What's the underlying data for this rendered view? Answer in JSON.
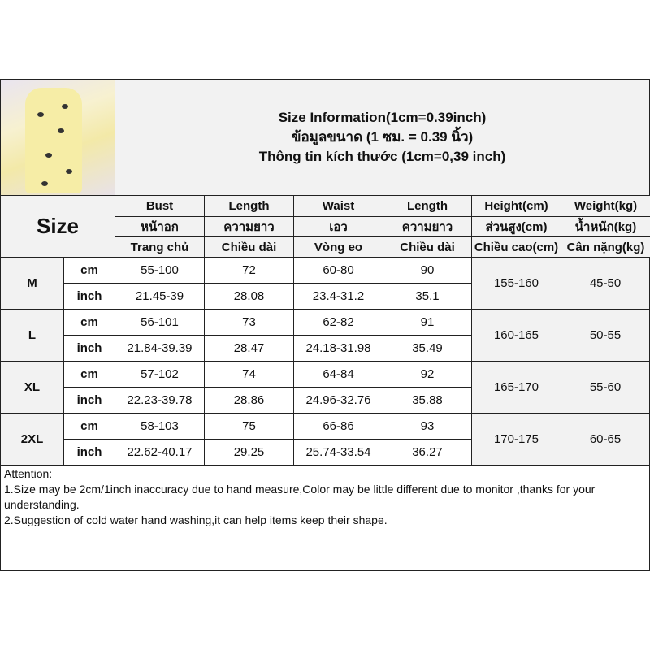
{
  "header": {
    "title_lines": [
      "Size Information(1cm=0.39inch)",
      "ข้อมูลขนาด (1 ซม. = 0.39 นิ้ว)",
      "Thông tin kích thước (1cm=0,39 inch)"
    ]
  },
  "size_label": "Size",
  "columns": [
    [
      "Bust",
      "หน้าอก",
      "Trang chủ"
    ],
    [
      "Length",
      "ความยาว",
      "Chiều dài"
    ],
    [
      "Waist",
      "เอว",
      "Vòng eo"
    ],
    [
      "Length",
      "ความยาว",
      "Chiều dài"
    ],
    [
      "Height(cm)",
      "ส่วนสูง(cm)",
      "Chiều cao(cm)"
    ],
    [
      "Weight(kg)",
      "น้ำหนัก(kg)",
      "Cân nặng(kg)"
    ]
  ],
  "units": [
    "cm",
    "inch"
  ],
  "rows": [
    {
      "size": "M",
      "cm": [
        "55-100",
        "72",
        "60-80",
        "90"
      ],
      "inch": [
        "21.45-39",
        "28.08",
        "23.4-31.2",
        "35.1"
      ],
      "height": "155-160",
      "weight": "45-50"
    },
    {
      "size": "L",
      "cm": [
        "56-101",
        "73",
        "62-82",
        "91"
      ],
      "inch": [
        "21.84-39.39",
        "28.47",
        "24.18-31.98",
        "35.49"
      ],
      "height": "160-165",
      "weight": "50-55"
    },
    {
      "size": "XL",
      "cm": [
        "57-102",
        "74",
        "64-84",
        "92"
      ],
      "inch": [
        "22.23-39.78",
        "28.86",
        "24.96-32.76",
        "35.88"
      ],
      "height": "165-170",
      "weight": "55-60"
    },
    {
      "size": "2XL",
      "cm": [
        "58-103",
        "75",
        "66-86",
        "93"
      ],
      "inch": [
        "22.62-40.17",
        "29.25",
        "25.74-33.54",
        "36.27"
      ],
      "height": "170-175",
      "weight": "60-65"
    }
  ],
  "attention": [
    "Attention:",
    "1.Size may be 2cm/1inch inaccuracy due to hand measure,Color may be little different due to monitor ,thanks for your understanding.",
    "2.Suggestion of cold water hand washing,it can help items keep their shape."
  ]
}
